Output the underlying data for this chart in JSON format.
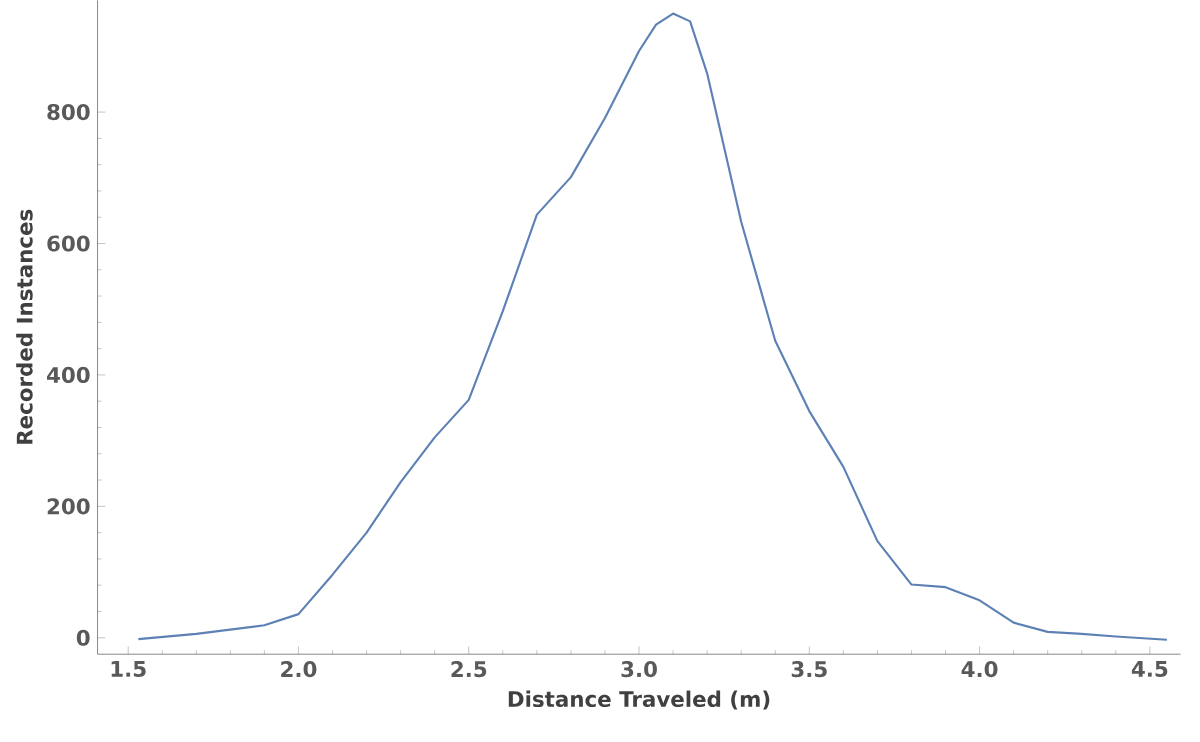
{
  "chart_data": {
    "type": "line",
    "xlabel": "Distance Traveled  (m)",
    "ylabel": "Recorded Instances",
    "xlim": [
      1.41,
      4.59
    ],
    "ylim": [
      -25,
      970
    ],
    "xticks": [
      {
        "value": 1.5,
        "label": "1.5"
      },
      {
        "value": 2,
        "label": "2.0"
      },
      {
        "value": 2.5,
        "label": "2.5"
      },
      {
        "value": 3,
        "label": "3.0"
      },
      {
        "value": 3.5,
        "label": "3.5"
      },
      {
        "value": 4,
        "label": "4.0"
      },
      {
        "value": 4.5,
        "label": "4.5"
      }
    ],
    "yticks": [
      0,
      200,
      400,
      600,
      800
    ],
    "grid": false,
    "marker": "none",
    "line_style": "solid",
    "series": [
      {
        "color": "#5e81b5",
        "x": [
          1.53,
          1.7,
          1.9,
          2.0,
          2.1,
          2.2,
          2.3,
          2.4,
          2.5,
          2.6,
          2.7,
          2.8,
          2.9,
          3.0,
          3.05,
          3.1,
          3.15,
          3.2,
          3.3,
          3.4,
          3.5,
          3.6,
          3.7,
          3.8,
          3.9,
          4.0,
          4.1,
          4.2,
          4.3,
          4.4,
          4.55
        ],
        "values": [
          -2,
          6,
          19,
          36,
          96,
          160,
          237,
          305,
          362,
          497,
          644,
          701,
          791,
          893,
          933,
          950,
          938,
          859,
          633,
          452,
          345,
          260,
          147,
          81,
          77,
          57,
          23,
          9,
          6,
          2,
          -3
        ]
      }
    ]
  }
}
